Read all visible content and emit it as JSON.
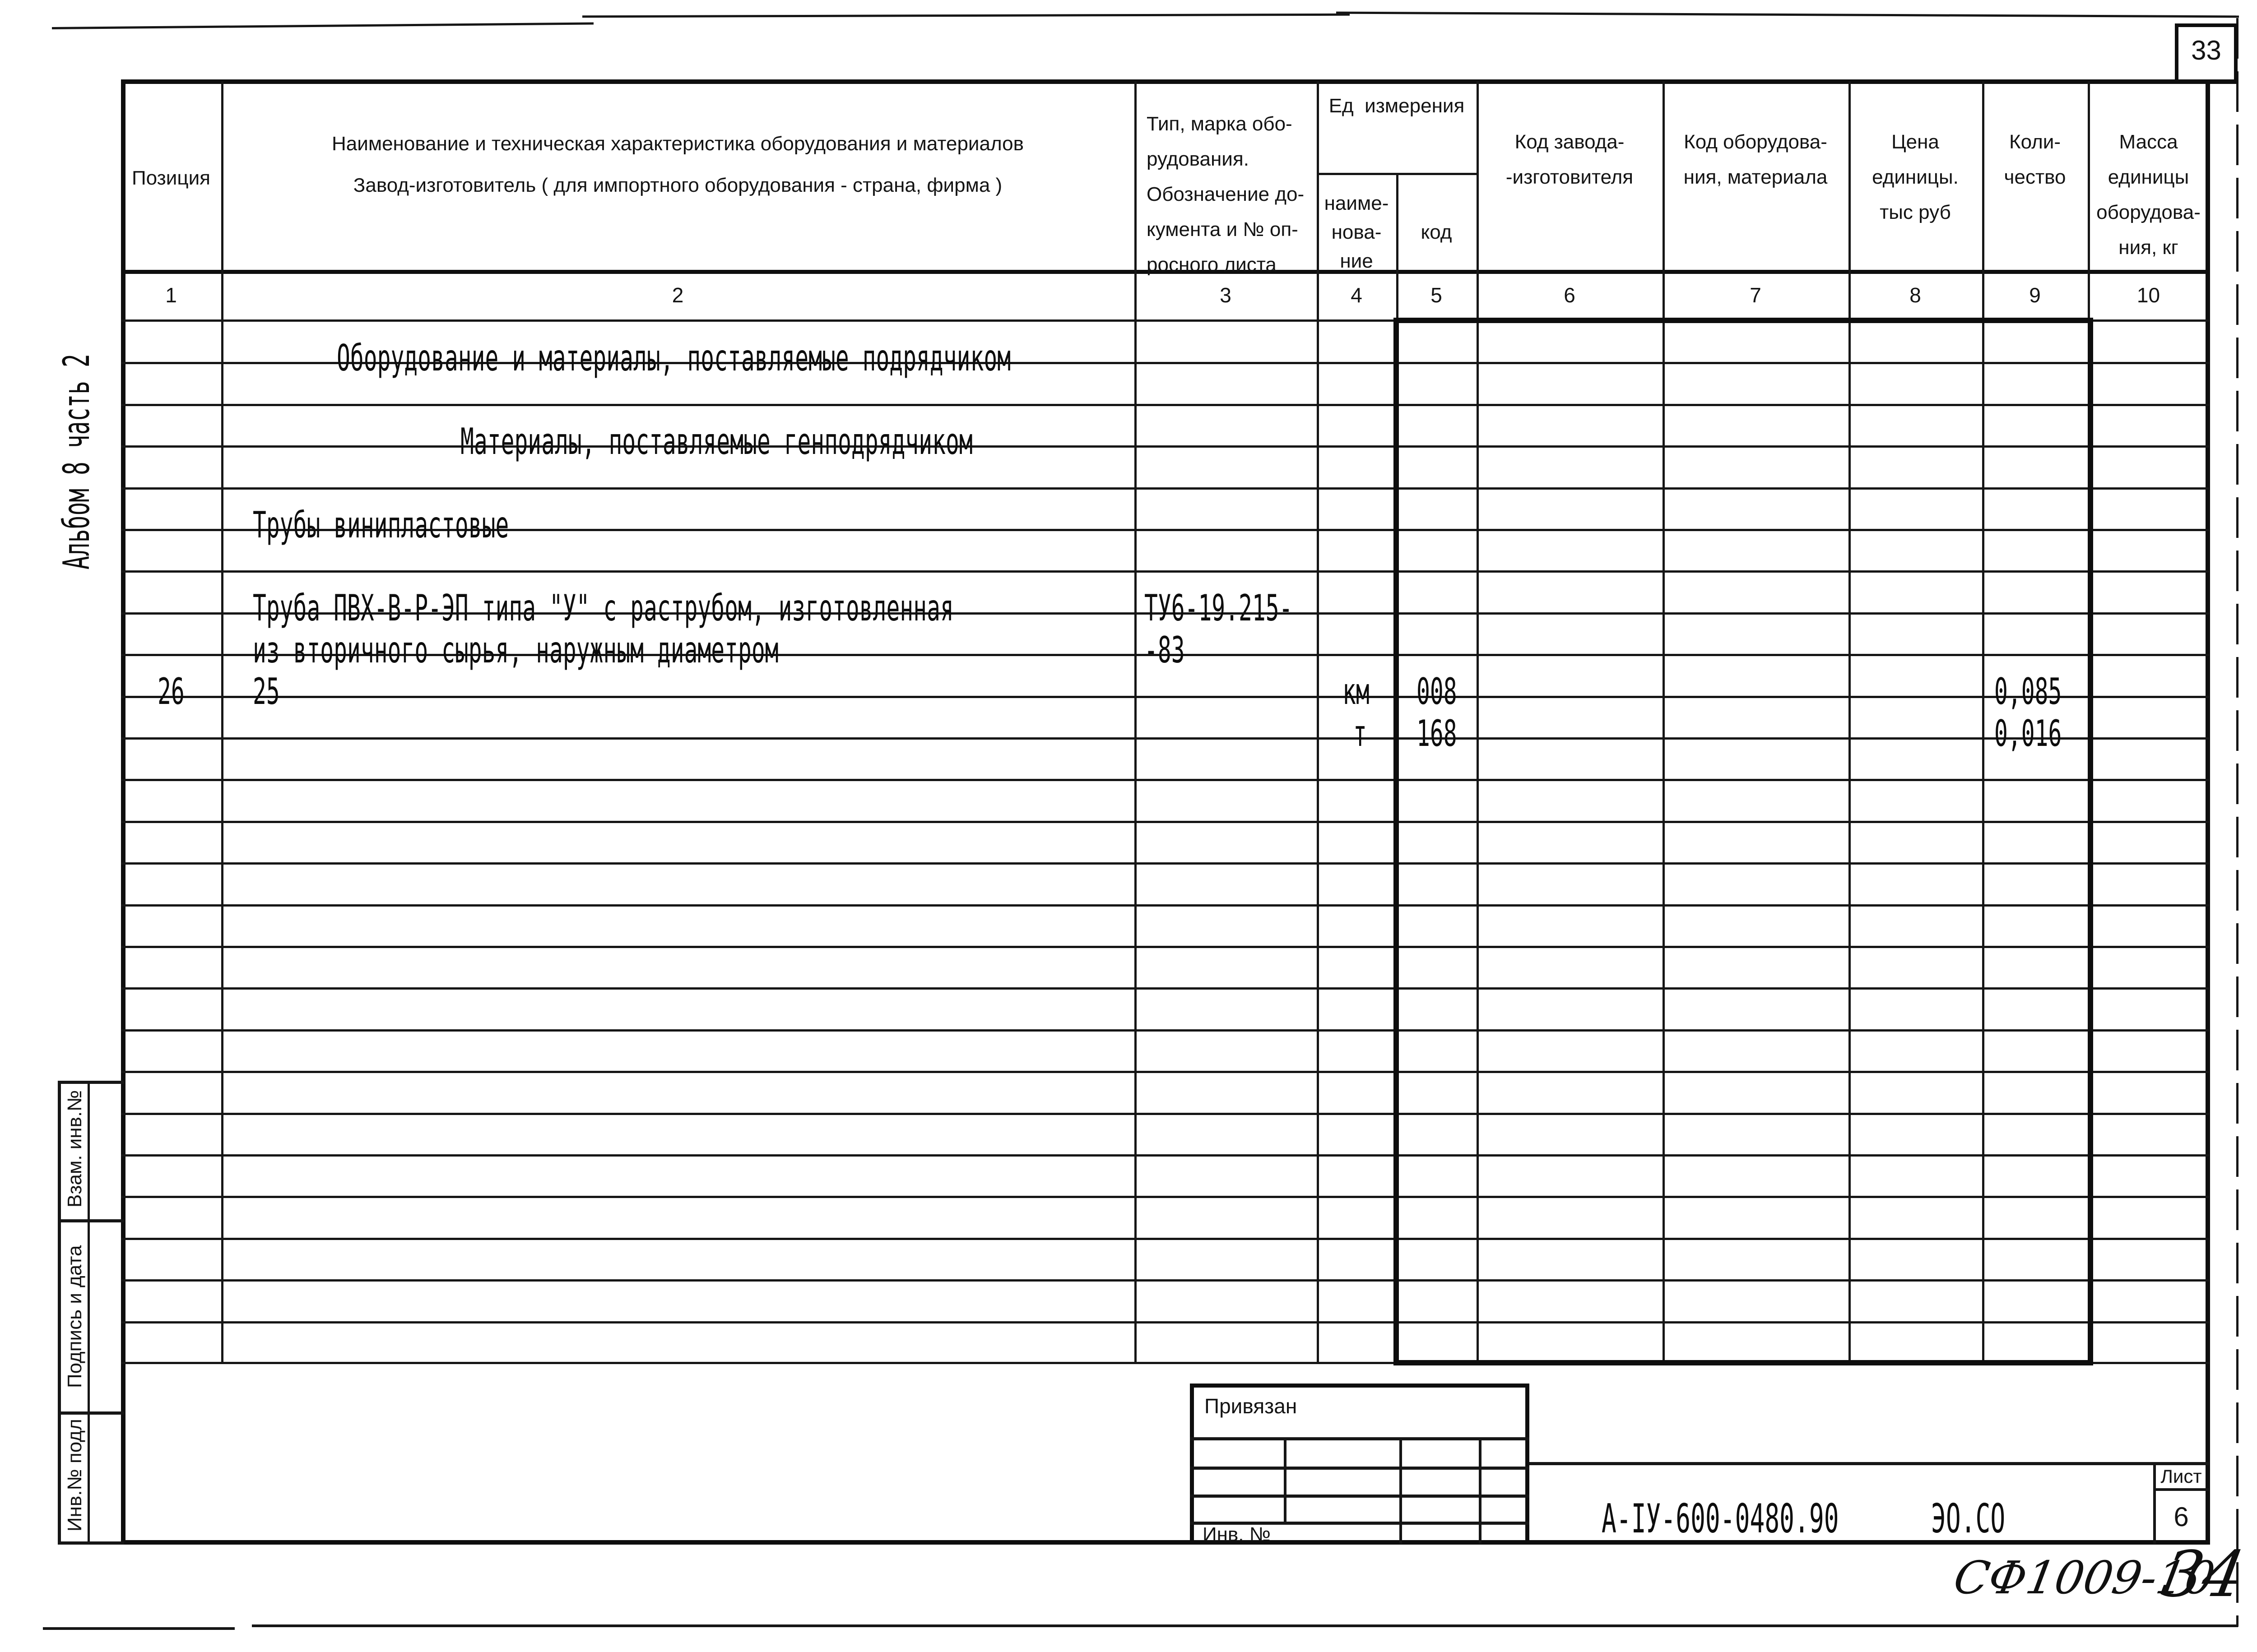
{
  "page": {
    "sheet_no": "33",
    "page_no_hand": "34",
    "code_hand": "СФ1009-10",
    "album_vertical": "Альбом 8 часть 2"
  },
  "table": {
    "header": {
      "col1": "Позиция",
      "col2_line1": "Наименование и техническая характеристика оборудования и материалов",
      "col2_line2": "Завод-изготовитель ( для импортного оборудования - страна, фирма )",
      "col3_lines": [
        "Тип, марка обо-",
        "рудования.",
        "Обозначение до-",
        "кумента и № оп-",
        "росного листа"
      ],
      "ed_izm": "Ед  измерения",
      "col4_lines": [
        "наиме-",
        "нова-",
        "ние"
      ],
      "col5": "код",
      "col6_lines": [
        "Код завода-",
        "-изготовителя"
      ],
      "col7_lines": [
        "Код оборудова-",
        "ния, материала"
      ],
      "col8_lines": [
        "Цена",
        "единицы.",
        "тыс руб"
      ],
      "col9_lines": [
        "Коли-",
        "чество"
      ],
      "col10_lines": [
        "Масса",
        "единицы",
        "оборудова-",
        "ния, кг"
      ],
      "numbers": [
        "1",
        "2",
        "3",
        "4",
        "5",
        "6",
        "7",
        "8",
        "9",
        "10"
      ]
    },
    "rows": {
      "section1": "Оборудование и материалы, поставляемые подрядчиком",
      "section2": "Материалы, поставляемые генподрядчиком",
      "group_title": "Трубы винипластовые",
      "item_name_line1": "Труба ПВХ-В-Р-ЭП типа \"У\" с раструбом, изготовленная",
      "item_name_line2": "из вторичного сырья, наружным диаметром",
      "item_doc_line1": "ТУ6-19.215-",
      "item_doc_line2": "-83",
      "position": "26",
      "diameter": "25",
      "unit1_name": "км",
      "unit1_code": "008",
      "unit1_qty": "0,085",
      "unit2_name": "т",
      "unit2_code": "168",
      "unit2_qty": "0,016"
    }
  },
  "sidebar": {
    "vzam": "Взам. инв.№",
    "podpis": "Подпись и дата",
    "inv_podl": "Инв.№ подл"
  },
  "titleblock": {
    "privyazan": "Привязан",
    "inv_no": "Инв. №",
    "doc_number": "А-IУ-600-0480.90",
    "doc_code": "ЭО.СО",
    "list_label": "Лист",
    "list_value": "6"
  }
}
